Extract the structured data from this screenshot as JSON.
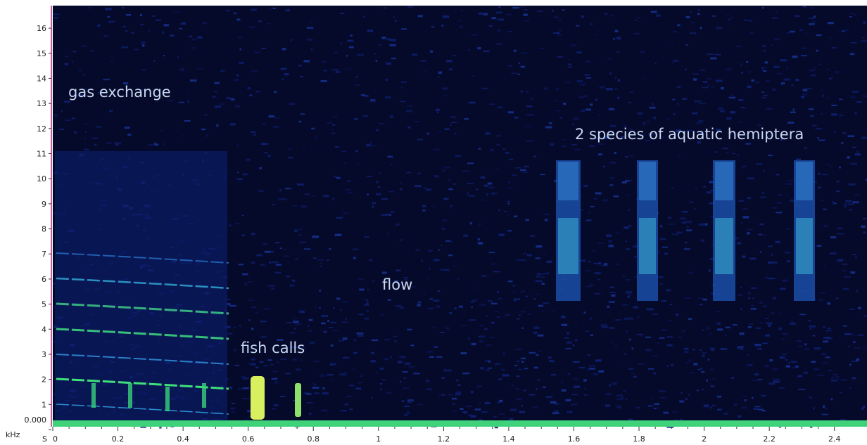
{
  "chart_data": {
    "type": "spectrogram",
    "x_label": "S",
    "y_label": "kHz",
    "xlim": [
      0,
      2.5
    ],
    "ylim": [
      0,
      16.9
    ],
    "xticks": [
      0,
      0.2,
      0.4,
      0.6,
      0.8,
      1,
      1.2,
      1.4,
      1.6,
      1.8,
      2,
      2.2,
      2.4
    ],
    "yticks": [
      {
        "value": 0,
        "label": "0.000"
      },
      1,
      2,
      3,
      4,
      5,
      6,
      7,
      8,
      9,
      10,
      11,
      12,
      13,
      14,
      15,
      16
    ],
    "annotations": [
      "gas exchange",
      "fish calls",
      "flow",
      "2 species of aquatic hemiptera"
    ],
    "color": "#05092a"
  }
}
